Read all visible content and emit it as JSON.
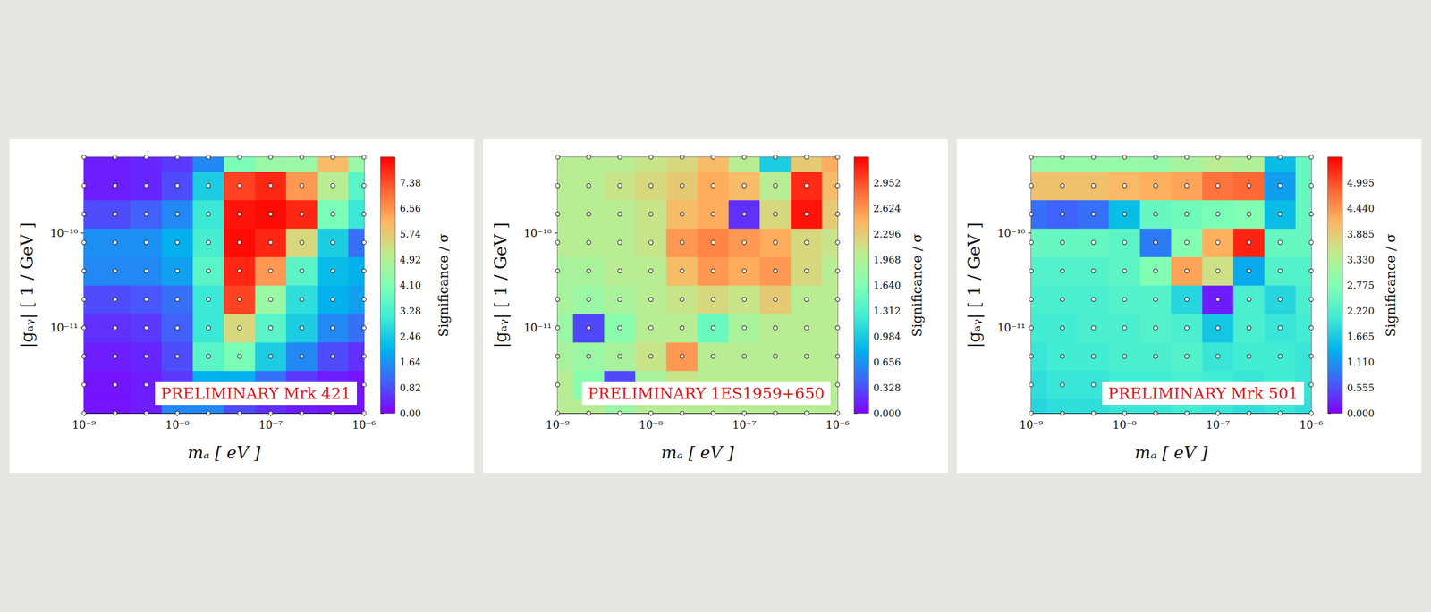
{
  "chart_data": [
    {
      "type": "heatmap",
      "title": "PRELIMINARY Mrk 421",
      "x_label": "mₐ [ eV ]",
      "y_label": "|gₐᵧ| [ 1 / GeV ]",
      "log": true,
      "grid": false,
      "marker": "circle",
      "x": [
        1e-09,
        2.154e-09,
        4.642e-09,
        1e-08,
        2.154e-08,
        4.642e-08,
        1e-07,
        2.154e-07,
        4.642e-07,
        1e-06
      ],
      "y": [
        1.259e-12,
        2.512e-12,
        5.012e-12,
        1e-11,
        1.995e-11,
        3.981e-11,
        7.943e-11,
        1.585e-10,
        3.162e-10,
        6.31e-10
      ],
      "z": [
        [
          0.2,
          0.2,
          0.3,
          1.5,
          1.5,
          0.8,
          0.5,
          0.3,
          0.2,
          0.2
        ],
        [
          0.2,
          0.2,
          0.3,
          0.6,
          2.0,
          2.0,
          1.2,
          0.6,
          0.3,
          0.2
        ],
        [
          0.3,
          0.3,
          0.4,
          0.8,
          3.5,
          4.0,
          2.5,
          1.5,
          0.8,
          0.5
        ],
        [
          0.5,
          0.5,
          0.6,
          1.0,
          3.0,
          5.5,
          3.5,
          2.5,
          1.5,
          1.2
        ],
        [
          0.8,
          0.8,
          0.9,
          1.2,
          3.0,
          7.5,
          4.5,
          2.8,
          2.0,
          1.8
        ],
        [
          1.5,
          1.5,
          1.5,
          1.8,
          3.5,
          7.8,
          6.5,
          3.5,
          2.2,
          2.0
        ],
        [
          1.6,
          1.6,
          1.6,
          2.0,
          3.2,
          8.1,
          7.8,
          5.5,
          2.5,
          1.2
        ],
        [
          0.8,
          0.8,
          1.0,
          1.5,
          3.0,
          8.0,
          8.1,
          7.8,
          4.0,
          3.0
        ],
        [
          0.3,
          0.3,
          0.4,
          0.8,
          2.5,
          7.5,
          7.8,
          6.5,
          5.0,
          3.5
        ],
        [
          0.3,
          0.3,
          0.4,
          0.6,
          1.5,
          4.0,
          4.5,
          4.5,
          6.0,
          4.5
        ]
      ],
      "xlim": [
        1e-09,
        1e-06
      ],
      "ylim": [
        1.259e-12,
        6.31e-10
      ],
      "xticks": [
        {
          "value": 1e-09,
          "label": "10⁻⁹"
        },
        {
          "value": 1e-08,
          "label": "10⁻⁸"
        },
        {
          "value": 1e-07,
          "label": "10⁻⁷"
        },
        {
          "value": 1e-06,
          "label": "10⁻⁶"
        }
      ],
      "yticks": [
        {
          "value": 1e-11,
          "label": "10⁻¹¹"
        },
        {
          "value": 1e-10,
          "label": "10⁻¹⁰"
        }
      ],
      "colorbar": {
        "label": "Significance / σ",
        "range": [
          0,
          8.2
        ],
        "ticks": [
          {
            "value": 0,
            "label": "0.00"
          },
          0.82,
          1.64,
          2.46,
          3.28,
          {
            "value": 4.1,
            "label": "4.10"
          },
          4.92,
          5.74,
          6.56,
          7.38
        ]
      }
    },
    {
      "type": "heatmap",
      "title": "PRELIMINARY 1ES1959+650",
      "x_label": "mₐ [ eV ]",
      "y_label": "|gₐᵧ| [ 1 / GeV ]",
      "log": true,
      "grid": false,
      "marker": "circle",
      "x": [
        1e-09,
        2.154e-09,
        4.642e-09,
        1e-08,
        2.154e-08,
        4.642e-08,
        1e-07,
        2.154e-07,
        4.642e-07,
        1e-06
      ],
      "y": [
        1.259e-12,
        2.512e-12,
        5.012e-12,
        1e-11,
        1.995e-11,
        3.981e-11,
        7.943e-11,
        1.585e-10,
        3.162e-10,
        6.31e-10
      ],
      "z": [
        [
          2.0,
          2.0,
          1.8,
          2.0,
          2.0,
          2.0,
          2.0,
          2.0,
          2.0,
          2.0
        ],
        [
          2.0,
          1.7,
          0.3,
          1.9,
          2.1,
          2.0,
          2.0,
          2.0,
          2.0,
          2.0
        ],
        [
          1.9,
          1.8,
          1.9,
          2.1,
          2.6,
          2.0,
          2.0,
          2.0,
          2.0,
          2.0
        ],
        [
          1.8,
          0.3,
          1.7,
          2.0,
          2.0,
          1.5,
          1.9,
          2.0,
          2.0,
          2.0
        ],
        [
          1.9,
          1.8,
          1.9,
          2.0,
          2.1,
          2.2,
          2.1,
          2.3,
          2.0,
          2.0
        ],
        [
          1.9,
          1.9,
          2.0,
          2.0,
          2.4,
          2.6,
          2.5,
          2.6,
          2.2,
          2.0
        ],
        [
          2.0,
          2.0,
          2.0,
          2.1,
          2.6,
          2.7,
          2.6,
          2.5,
          2.2,
          2.1
        ],
        [
          2.0,
          2.0,
          2.0,
          2.1,
          2.4,
          2.5,
          0.2,
          2.2,
          3.2,
          2.3
        ],
        [
          2.0,
          2.0,
          2.1,
          2.2,
          2.3,
          2.5,
          2.4,
          2.0,
          3.1,
          2.4
        ],
        [
          2.0,
          2.0,
          2.0,
          2.1,
          2.2,
          2.4,
          2.0,
          1.0,
          2.3,
          2.5
        ]
      ],
      "xlim": [
        1e-09,
        1e-06
      ],
      "ylim": [
        1.259e-12,
        6.31e-10
      ],
      "xticks": [
        {
          "value": 1e-09,
          "label": "10⁻⁹"
        },
        {
          "value": 1e-08,
          "label": "10⁻⁸"
        },
        {
          "value": 1e-07,
          "label": "10⁻⁷"
        },
        {
          "value": 1e-06,
          "label": "10⁻⁶"
        }
      ],
      "yticks": [
        {
          "value": 1e-11,
          "label": "10⁻¹¹"
        },
        {
          "value": 1e-10,
          "label": "10⁻¹⁰"
        }
      ],
      "colorbar": {
        "label": "Significance / σ",
        "range": [
          0,
          3.28
        ],
        "ticks": [
          {
            "value": 0,
            "label": "0.000"
          },
          0.328,
          0.656,
          0.984,
          1.312,
          {
            "value": 1.64,
            "label": "1.640"
          },
          1.968,
          2.296,
          2.624,
          2.952
        ]
      }
    },
    {
      "type": "heatmap",
      "title": "PRELIMINARY Mrk 501",
      "x_label": "mₐ [ eV ]",
      "y_label": "|gₐᵧ| [ 1 / GeV ]",
      "log": true,
      "grid": false,
      "marker": "circle",
      "x": [
        1e-09,
        2.154e-09,
        4.642e-09,
        1e-08,
        2.154e-08,
        4.642e-08,
        1e-07,
        2.154e-07,
        4.642e-07,
        1e-06
      ],
      "y": [
        1.259e-12,
        2.512e-12,
        5.012e-12,
        1e-11,
        1.995e-11,
        3.981e-11,
        7.943e-11,
        1.585e-10,
        3.162e-10,
        6.31e-10
      ],
      "z": [
        [
          1.8,
          1.9,
          1.9,
          2.0,
          2.0,
          2.1,
          2.0,
          1.9,
          2.0,
          1.9
        ],
        [
          1.9,
          2.0,
          2.0,
          2.1,
          2.1,
          2.2,
          2.1,
          2.0,
          2.1,
          2.0
        ],
        [
          2.0,
          2.1,
          2.1,
          2.2,
          2.2,
          2.3,
          2.0,
          2.1,
          2.1,
          2.0
        ],
        [
          2.1,
          2.1,
          2.2,
          2.2,
          2.3,
          2.2,
          1.6,
          2.2,
          2.0,
          2.1
        ],
        [
          2.2,
          2.2,
          2.2,
          2.3,
          2.3,
          1.8,
          0.2,
          2.2,
          1.8,
          2.2
        ],
        [
          2.3,
          2.3,
          2.3,
          2.4,
          2.8,
          4.3,
          3.6,
          1.3,
          2.3,
          2.3
        ],
        [
          2.5,
          2.5,
          2.5,
          2.4,
          0.9,
          2.8,
          4.2,
          5.3,
          2.5,
          2.5
        ],
        [
          0.8,
          0.7,
          0.8,
          1.5,
          2.5,
          2.6,
          2.7,
          2.8,
          1.5,
          2.5
        ],
        [
          4.0,
          4.0,
          4.0,
          4.1,
          4.2,
          4.3,
          4.7,
          4.8,
          1.2,
          2.5
        ],
        [
          3.0,
          3.0,
          3.0,
          3.0,
          3.0,
          3.2,
          3.4,
          3.3,
          1.5,
          2.5
        ]
      ],
      "xlim": [
        1e-09,
        1e-06
      ],
      "ylim": [
        1.259e-12,
        6.31e-10
      ],
      "xticks": [
        {
          "value": 1e-09,
          "label": "10⁻⁹"
        },
        {
          "value": 1e-08,
          "label": "10⁻⁸"
        },
        {
          "value": 1e-07,
          "label": "10⁻⁷"
        },
        {
          "value": 1e-06,
          "label": "10⁻⁶"
        }
      ],
      "yticks": [
        {
          "value": 1e-11,
          "label": "10⁻¹¹"
        },
        {
          "value": 1e-10,
          "label": "10⁻¹⁰"
        }
      ],
      "colorbar": {
        "label": "Significance / σ",
        "range": [
          0,
          5.55
        ],
        "ticks": [
          {
            "value": 0,
            "label": "0.000"
          },
          0.555,
          {
            "value": 1.11,
            "label": "1.110"
          },
          1.665,
          {
            "value": 2.22,
            "label": "2.220"
          },
          2.775,
          {
            "value": 3.33,
            "label": "3.330"
          },
          3.885,
          {
            "value": 4.44,
            "label": "4.440"
          },
          4.995
        ]
      }
    }
  ]
}
